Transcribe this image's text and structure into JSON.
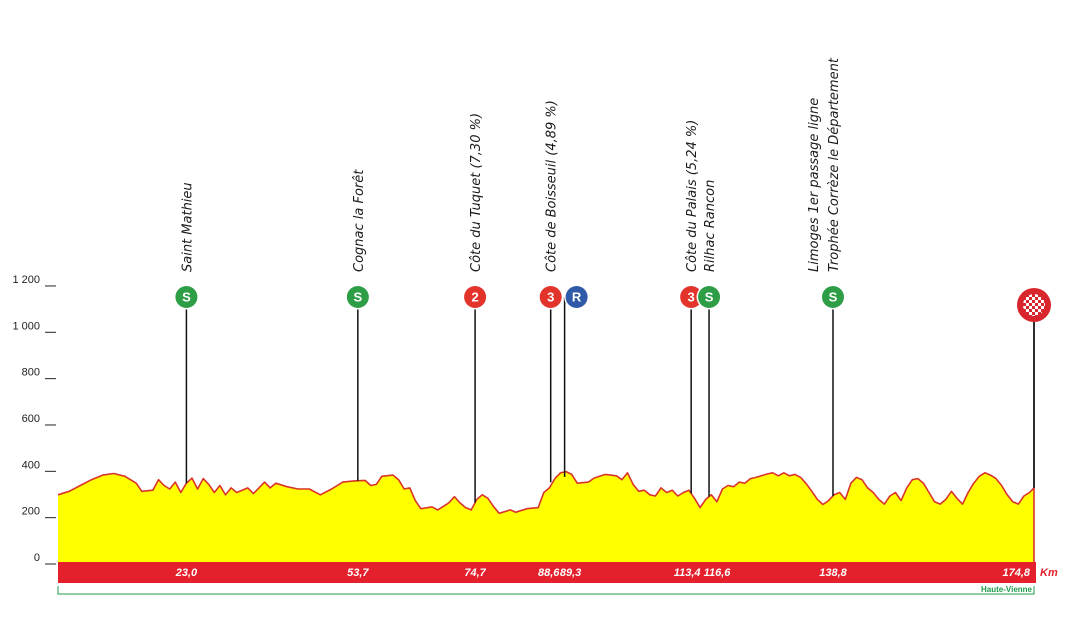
{
  "chart_data": {
    "type": "area",
    "title": "",
    "xlabel": "",
    "x_unit": "Km",
    "ylabel": "",
    "ylim": [
      0,
      1200
    ],
    "y_ticks": [
      "0",
      "200",
      "400",
      "600",
      "800",
      "1 000",
      "1 200"
    ],
    "y_tick_values": [
      0,
      200,
      400,
      600,
      800,
      1000,
      1200
    ],
    "xlim": [
      0,
      174.8
    ],
    "colors": {
      "fill": "#ffff00",
      "outline": "#d9342b",
      "km_band": "#e3202b",
      "sprint": "#2e9e46",
      "climb": "#e3342b",
      "ravito": "#2e5aa8",
      "region": "#1f9a4a"
    },
    "profile": [
      {
        "x": 0,
        "y": 290
      },
      {
        "x": 2,
        "y": 305
      },
      {
        "x": 4,
        "y": 330
      },
      {
        "x": 6,
        "y": 355
      },
      {
        "x": 8,
        "y": 375
      },
      {
        "x": 10,
        "y": 382
      },
      {
        "x": 12,
        "y": 370
      },
      {
        "x": 14,
        "y": 340
      },
      {
        "x": 15,
        "y": 305
      },
      {
        "x": 17,
        "y": 310
      },
      {
        "x": 18,
        "y": 355
      },
      {
        "x": 19,
        "y": 330
      },
      {
        "x": 20,
        "y": 315
      },
      {
        "x": 21,
        "y": 345
      },
      {
        "x": 22,
        "y": 300
      },
      {
        "x": 23,
        "y": 340
      },
      {
        "x": 24,
        "y": 362
      },
      {
        "x": 25,
        "y": 315
      },
      {
        "x": 26,
        "y": 360
      },
      {
        "x": 27,
        "y": 335
      },
      {
        "x": 28,
        "y": 300
      },
      {
        "x": 29,
        "y": 330
      },
      {
        "x": 30,
        "y": 290
      },
      {
        "x": 31,
        "y": 320
      },
      {
        "x": 32,
        "y": 300
      },
      {
        "x": 34,
        "y": 320
      },
      {
        "x": 35,
        "y": 295
      },
      {
        "x": 37,
        "y": 345
      },
      {
        "x": 38,
        "y": 320
      },
      {
        "x": 39,
        "y": 340
      },
      {
        "x": 41,
        "y": 325
      },
      {
        "x": 43,
        "y": 315
      },
      {
        "x": 45,
        "y": 315
      },
      {
        "x": 47,
        "y": 290
      },
      {
        "x": 49,
        "y": 315
      },
      {
        "x": 51,
        "y": 345
      },
      {
        "x": 53,
        "y": 350
      },
      {
        "x": 55,
        "y": 352
      },
      {
        "x": 56,
        "y": 330
      },
      {
        "x": 57,
        "y": 335
      },
      {
        "x": 58,
        "y": 370
      },
      {
        "x": 60,
        "y": 375
      },
      {
        "x": 61,
        "y": 355
      },
      {
        "x": 62,
        "y": 315
      },
      {
        "x": 63,
        "y": 320
      },
      {
        "x": 64,
        "y": 265
      },
      {
        "x": 65,
        "y": 230
      },
      {
        "x": 67,
        "y": 238
      },
      {
        "x": 68,
        "y": 225
      },
      {
        "x": 70,
        "y": 255
      },
      {
        "x": 71,
        "y": 282
      },
      {
        "x": 72,
        "y": 255
      },
      {
        "x": 73,
        "y": 235
      },
      {
        "x": 74,
        "y": 225
      },
      {
        "x": 75,
        "y": 270
      },
      {
        "x": 76,
        "y": 290
      },
      {
        "x": 77,
        "y": 275
      },
      {
        "x": 78,
        "y": 240
      },
      {
        "x": 79,
        "y": 210
      },
      {
        "x": 81,
        "y": 225
      },
      {
        "x": 82,
        "y": 215
      },
      {
        "x": 84,
        "y": 230
      },
      {
        "x": 86,
        "y": 235
      },
      {
        "x": 87,
        "y": 300
      },
      {
        "x": 88,
        "y": 320
      },
      {
        "x": 89,
        "y": 360
      },
      {
        "x": 90,
        "y": 385
      },
      {
        "x": 91,
        "y": 390
      },
      {
        "x": 92,
        "y": 378
      },
      {
        "x": 93,
        "y": 340
      },
      {
        "x": 95,
        "y": 345
      },
      {
        "x": 96,
        "y": 362
      },
      {
        "x": 98,
        "y": 378
      },
      {
        "x": 100,
        "y": 372
      },
      {
        "x": 101,
        "y": 355
      },
      {
        "x": 102,
        "y": 385
      },
      {
        "x": 103,
        "y": 335
      },
      {
        "x": 104,
        "y": 305
      },
      {
        "x": 105,
        "y": 310
      },
      {
        "x": 106,
        "y": 290
      },
      {
        "x": 107,
        "y": 285
      },
      {
        "x": 108,
        "y": 320
      },
      {
        "x": 109,
        "y": 300
      },
      {
        "x": 110,
        "y": 310
      },
      {
        "x": 111,
        "y": 285
      },
      {
        "x": 112,
        "y": 300
      },
      {
        "x": 113,
        "y": 310
      },
      {
        "x": 114,
        "y": 275
      },
      {
        "x": 115,
        "y": 235
      },
      {
        "x": 116,
        "y": 270
      },
      {
        "x": 117,
        "y": 290
      },
      {
        "x": 118,
        "y": 260
      },
      {
        "x": 119,
        "y": 315
      },
      {
        "x": 120,
        "y": 330
      },
      {
        "x": 121,
        "y": 325
      },
      {
        "x": 122,
        "y": 345
      },
      {
        "x": 123,
        "y": 340
      },
      {
        "x": 124,
        "y": 360
      },
      {
        "x": 125,
        "y": 365
      },
      {
        "x": 127,
        "y": 380
      },
      {
        "x": 128,
        "y": 385
      },
      {
        "x": 129,
        "y": 372
      },
      {
        "x": 130,
        "y": 385
      },
      {
        "x": 131,
        "y": 372
      },
      {
        "x": 132,
        "y": 378
      },
      {
        "x": 133,
        "y": 365
      },
      {
        "x": 134,
        "y": 338
      },
      {
        "x": 135,
        "y": 305
      },
      {
        "x": 136,
        "y": 270
      },
      {
        "x": 137,
        "y": 248
      },
      {
        "x": 138,
        "y": 265
      },
      {
        "x": 139,
        "y": 290
      },
      {
        "x": 140,
        "y": 300
      },
      {
        "x": 141,
        "y": 270
      },
      {
        "x": 142,
        "y": 340
      },
      {
        "x": 143,
        "y": 365
      },
      {
        "x": 144,
        "y": 355
      },
      {
        "x": 145,
        "y": 320
      },
      {
        "x": 146,
        "y": 300
      },
      {
        "x": 147,
        "y": 270
      },
      {
        "x": 148,
        "y": 250
      },
      {
        "x": 149,
        "y": 285
      },
      {
        "x": 150,
        "y": 300
      },
      {
        "x": 151,
        "y": 265
      },
      {
        "x": 152,
        "y": 320
      },
      {
        "x": 153,
        "y": 355
      },
      {
        "x": 154,
        "y": 360
      },
      {
        "x": 155,
        "y": 340
      },
      {
        "x": 156,
        "y": 300
      },
      {
        "x": 157,
        "y": 260
      },
      {
        "x": 158,
        "y": 250
      },
      {
        "x": 159,
        "y": 270
      },
      {
        "x": 160,
        "y": 305
      },
      {
        "x": 161,
        "y": 275
      },
      {
        "x": 162,
        "y": 250
      },
      {
        "x": 163,
        "y": 300
      },
      {
        "x": 164,
        "y": 340
      },
      {
        "x": 165,
        "y": 370
      },
      {
        "x": 166,
        "y": 385
      },
      {
        "x": 167,
        "y": 375
      },
      {
        "x": 168,
        "y": 360
      },
      {
        "x": 169,
        "y": 330
      },
      {
        "x": 170,
        "y": 290
      },
      {
        "x": 171,
        "y": 260
      },
      {
        "x": 172,
        "y": 250
      },
      {
        "x": 173,
        "y": 285
      },
      {
        "x": 174,
        "y": 300
      },
      {
        "x": 174.8,
        "y": 320
      }
    ],
    "km_labels": [
      {
        "km": 23.0,
        "label": "23,0"
      },
      {
        "km": 53.7,
        "label": "53,7"
      },
      {
        "km": 74.7,
        "label": "74,7"
      },
      {
        "km": 88.6,
        "label": "88,6"
      },
      {
        "km": 89.3,
        "label": "89,3"
      },
      {
        "km": 113.4,
        "label": "113,4"
      },
      {
        "km": 116.6,
        "label": "116,6"
      },
      {
        "km": 138.8,
        "label": "138,8"
      },
      {
        "km": 174.8,
        "label": "174,8"
      }
    ],
    "waypoints": [
      {
        "km": 23.0,
        "badge": "S",
        "kind": "sprint",
        "lines": [
          "Saint Mathieu"
        ]
      },
      {
        "km": 53.7,
        "badge": "S",
        "kind": "sprint",
        "lines": [
          "Cognac la Forêt"
        ]
      },
      {
        "km": 74.7,
        "badge": "2",
        "kind": "climb",
        "lines": [
          "Côte du Tuquet (7,30 %)"
        ]
      },
      {
        "km": 88.6,
        "badge": "3",
        "kind": "climb",
        "lines": [
          "Côte de Boisseuil (4,89 %)"
        ]
      },
      {
        "km": 89.3,
        "badge": "R",
        "kind": "ravito",
        "lines": []
      },
      {
        "km": 113.4,
        "badge": "3",
        "kind": "climb",
        "lines": [
          "Côte du Palais (5,24 %)"
        ]
      },
      {
        "km": 116.6,
        "badge": "S",
        "kind": "sprint",
        "lines": [
          "Rilhac Rancon"
        ]
      },
      {
        "km": 138.8,
        "badge": "S",
        "kind": "sprint",
        "lines": [
          "Limoges 1er passage ligne",
          "Trophée Corrèze le Département"
        ]
      },
      {
        "km": 174.8,
        "badge": "",
        "kind": "finish",
        "lines": []
      }
    ],
    "regions": [
      {
        "name": "Haute-Vienne",
        "from": 0,
        "to": 174.8
      }
    ]
  }
}
